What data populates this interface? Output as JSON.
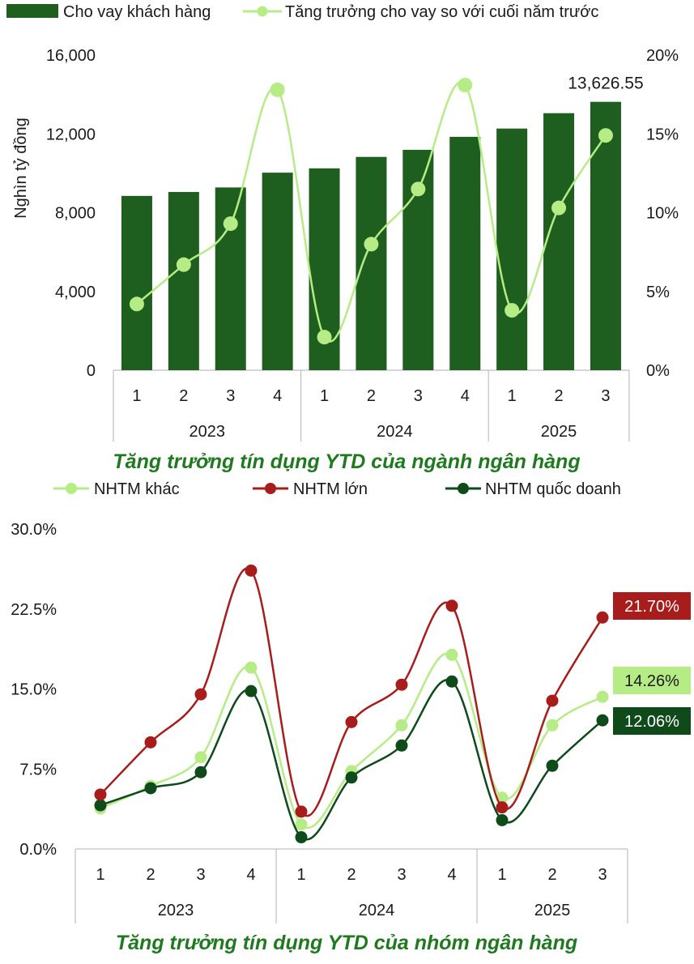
{
  "chart_data": [
    {
      "type": "bar",
      "title": "Tăng trưởng tín dụng YTD của ngành ngân hàng",
      "ylabel": "Nghìn tỷ đồng",
      "ylim": [
        0,
        16000
      ],
      "y_ticks": [
        "0",
        "4,000",
        "8,000",
        "12,000",
        "16,000"
      ],
      "y2lim": [
        0,
        20
      ],
      "y2_ticks": [
        "0%",
        "5%",
        "10%",
        "15%",
        "20%"
      ],
      "categories": [
        "1",
        "2",
        "3",
        "4",
        "1",
        "2",
        "3",
        "4",
        "1",
        "2",
        "3"
      ],
      "groups": [
        {
          "label": "2023",
          "count": 4
        },
        {
          "label": "2024",
          "count": 4
        },
        {
          "label": "2025",
          "count": 3
        }
      ],
      "legend_position": "top",
      "series": [
        {
          "name": "Cho vay khách hàng",
          "kind": "bar",
          "axis": "left",
          "color": "#1e5e1e",
          "values": [
            8850,
            9050,
            9280,
            10030,
            10250,
            10830,
            11190,
            11850,
            12270,
            13050,
            13626.55
          ]
        },
        {
          "name": "Tăng trưởng cho vay so với cuối năm trước",
          "kind": "line",
          "axis": "right",
          "color": "#b6ec85",
          "values": [
            4.2,
            6.7,
            9.3,
            17.8,
            2.1,
            8.0,
            11.5,
            18.1,
            3.8,
            10.3,
            14.9
          ]
        }
      ],
      "data_label": "13,626.55"
    },
    {
      "type": "line",
      "title": "Tăng trưởng tín dụng YTD của nhóm ngân hàng",
      "ylim": [
        0,
        30
      ],
      "y_ticks": [
        "0.0%",
        "7.5%",
        "15.0%",
        "22.5%",
        "30.0%"
      ],
      "categories": [
        "1",
        "2",
        "3",
        "4",
        "1",
        "2",
        "3",
        "4",
        "1",
        "2",
        "3"
      ],
      "groups": [
        {
          "label": "2023",
          "count": 4
        },
        {
          "label": "2024",
          "count": 4
        },
        {
          "label": "2025",
          "count": 3
        }
      ],
      "legend_position": "top",
      "series": [
        {
          "name": "NHTM khác",
          "color": "#b6ec85",
          "text_color": "#1a1a1a",
          "values": [
            3.8,
            5.9,
            8.6,
            17.0,
            2.3,
            7.3,
            11.6,
            18.2,
            4.8,
            11.6,
            14.26
          ],
          "end_label": "14.26%"
        },
        {
          "name": "NHTM lớn",
          "color": "#a81c1c",
          "text_color": "#ffffff",
          "values": [
            5.1,
            10.0,
            14.5,
            26.1,
            3.5,
            11.9,
            15.4,
            22.8,
            3.9,
            13.9,
            21.7
          ],
          "end_label": "21.70%"
        },
        {
          "name": "NHTM quốc doanh",
          "color": "#0e4a1a",
          "text_color": "#ffffff",
          "values": [
            4.1,
            5.7,
            7.2,
            14.8,
            1.1,
            6.7,
            9.7,
            15.7,
            2.7,
            7.8,
            12.06
          ],
          "end_label": "12.06%"
        }
      ]
    }
  ]
}
